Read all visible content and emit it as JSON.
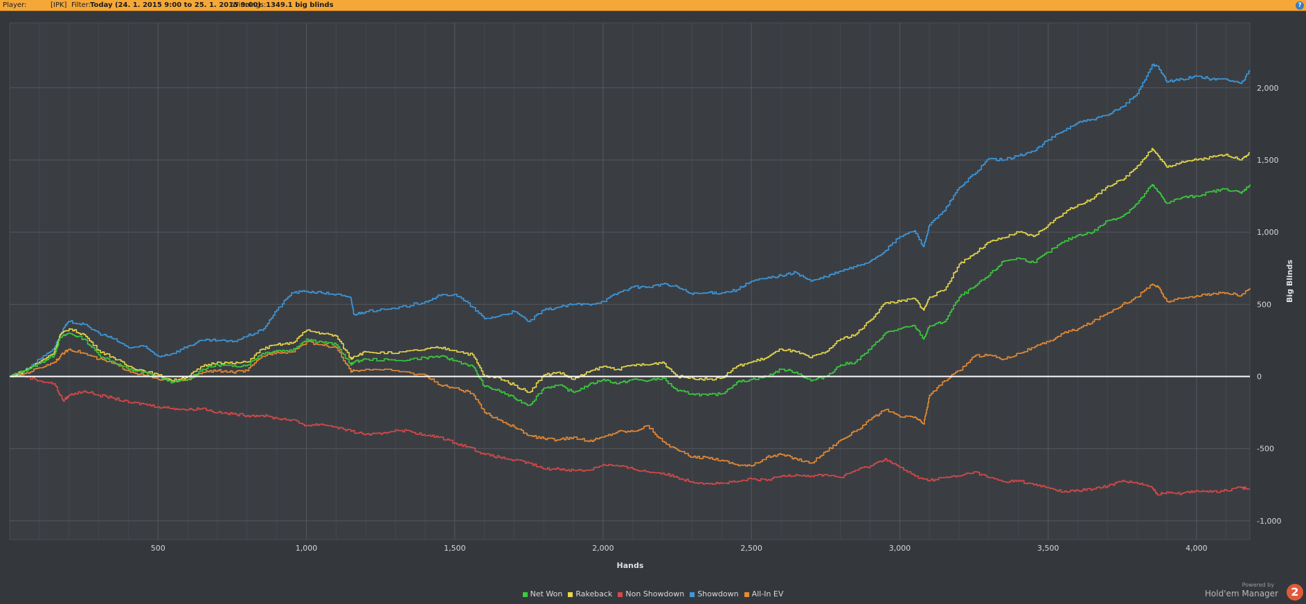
{
  "topbar": {
    "player_label": "Player:",
    "player_value": "[IPK]",
    "filter_label": "Filter:",
    "filter_value": "Today (24. 1. 2015 9:00 to 25. 1. 2015 9:00)",
    "winnings_label": "Winnings:",
    "winnings_value": "1349.1 big blinds",
    "help_icon": "help-icon"
  },
  "footer": {
    "powered_by": "Powered by",
    "brand": "Hold'em Manager",
    "brand_logo": "2"
  },
  "chart_data": {
    "type": "line",
    "xlabel": "Hands",
    "ylabel": "Big Blinds",
    "xlim": [
      0,
      4180
    ],
    "ylim": [
      -1130,
      2450
    ],
    "xticks": [
      500,
      1000,
      1500,
      2000,
      2500,
      3000,
      3500,
      4000
    ],
    "xtick_labels": [
      "500",
      "1,000",
      "1,500",
      "2,000",
      "2,500",
      "3,000",
      "3,500",
      "4,000"
    ],
    "yticks": [
      2000,
      1500,
      1000,
      500,
      0,
      -500,
      -1000
    ],
    "ytick_labels": [
      "2,000",
      "1,500",
      "1,000",
      "500",
      "0",
      "-500",
      "-1,000"
    ],
    "grid": true,
    "zero_line": true,
    "legend_position": "bottom-center",
    "series": [
      {
        "name": "Net Won",
        "color": "#3ccb3c",
        "x": [
          0,
          50,
          100,
          150,
          170,
          200,
          250,
          300,
          350,
          400,
          450,
          500,
          550,
          600,
          650,
          700,
          750,
          800,
          850,
          900,
          950,
          1000,
          1050,
          1100,
          1150,
          1160,
          1200,
          1300,
          1400,
          1450,
          1500,
          1560,
          1600,
          1650,
          1700,
          1750,
          1800,
          1850,
          1900,
          1950,
          2000,
          2050,
          2100,
          2150,
          2200,
          2250,
          2300,
          2350,
          2400,
          2450,
          2500,
          2550,
          2600,
          2650,
          2700,
          2750,
          2800,
          2850,
          2900,
          2950,
          3000,
          3050,
          3080,
          3100,
          3150,
          3200,
          3250,
          3300,
          3350,
          3400,
          3450,
          3500,
          3550,
          3600,
          3650,
          3700,
          3750,
          3800,
          3850,
          3870,
          3900,
          3950,
          4000,
          4050,
          4100,
          4150,
          4180
        ],
        "y": [
          0,
          40,
          90,
          150,
          270,
          300,
          260,
          150,
          100,
          50,
          30,
          0,
          -40,
          -20,
          50,
          80,
          70,
          80,
          160,
          180,
          180,
          260,
          240,
          220,
          80,
          100,
          120,
          110,
          130,
          140,
          110,
          70,
          -70,
          -100,
          -150,
          -200,
          -80,
          -60,
          -110,
          -60,
          -20,
          -50,
          -20,
          -30,
          -10,
          -100,
          -120,
          -130,
          -120,
          -40,
          -20,
          0,
          50,
          30,
          -30,
          0,
          80,
          100,
          190,
          300,
          330,
          350,
          260,
          350,
          380,
          550,
          620,
          700,
          800,
          820,
          790,
          860,
          930,
          980,
          1000,
          1080,
          1110,
          1200,
          1330,
          1280,
          1200,
          1240,
          1250,
          1280,
          1300,
          1270,
          1330
        ]
      },
      {
        "name": "Rakeback",
        "color": "#e8d84a",
        "x": [
          0,
          50,
          100,
          150,
          170,
          200,
          250,
          300,
          350,
          400,
          450,
          500,
          550,
          600,
          650,
          700,
          750,
          800,
          850,
          900,
          950,
          1000,
          1050,
          1100,
          1150,
          1160,
          1200,
          1300,
          1400,
          1450,
          1500,
          1560,
          1600,
          1650,
          1700,
          1750,
          1800,
          1850,
          1900,
          1950,
          2000,
          2050,
          2100,
          2150,
          2200,
          2250,
          2300,
          2350,
          2400,
          2450,
          2500,
          2550,
          2600,
          2650,
          2700,
          2750,
          2800,
          2850,
          2900,
          2950,
          3000,
          3050,
          3080,
          3100,
          3150,
          3200,
          3250,
          3300,
          3350,
          3400,
          3450,
          3500,
          3550,
          3600,
          3650,
          3700,
          3750,
          3800,
          3850,
          3870,
          3900,
          3950,
          4000,
          4050,
          4100,
          4150,
          4180
        ],
        "y": [
          0,
          40,
          100,
          170,
          290,
          330,
          290,
          180,
          130,
          70,
          40,
          10,
          -30,
          0,
          70,
          100,
          90,
          100,
          190,
          220,
          230,
          320,
          300,
          280,
          120,
          140,
          170,
          160,
          190,
          200,
          180,
          150,
          0,
          -10,
          -60,
          -110,
          10,
          30,
          -20,
          30,
          70,
          50,
          80,
          80,
          100,
          0,
          -10,
          -20,
          -10,
          70,
          100,
          130,
          190,
          170,
          130,
          170,
          260,
          290,
          390,
          510,
          520,
          540,
          460,
          550,
          600,
          780,
          850,
          930,
          960,
          1000,
          970,
          1050,
          1130,
          1190,
          1230,
          1320,
          1360,
          1460,
          1580,
          1530,
          1450,
          1490,
          1500,
          1520,
          1540,
          1500,
          1550
        ]
      },
      {
        "name": "Non Showdown",
        "color": "#d94848",
        "x": [
          0,
          40,
          100,
          150,
          180,
          200,
          250,
          300,
          350,
          400,
          450,
          500,
          550,
          600,
          650,
          700,
          750,
          800,
          850,
          900,
          950,
          1000,
          1050,
          1100,
          1150,
          1200,
          1250,
          1300,
          1350,
          1400,
          1450,
          1500,
          1550,
          1600,
          1650,
          1700,
          1750,
          1800,
          1850,
          1900,
          1950,
          2000,
          2050,
          2100,
          2150,
          2200,
          2250,
          2300,
          2350,
          2400,
          2450,
          2500,
          2550,
          2600,
          2650,
          2700,
          2750,
          2800,
          2850,
          2900,
          2950,
          3000,
          3050,
          3100,
          3150,
          3200,
          3250,
          3300,
          3350,
          3400,
          3450,
          3500,
          3550,
          3600,
          3650,
          3700,
          3750,
          3800,
          3850,
          3870,
          3900,
          3950,
          4000,
          4050,
          4100,
          4150,
          4180
        ],
        "y": [
          0,
          10,
          -30,
          -50,
          -170,
          -130,
          -100,
          -130,
          -150,
          -180,
          -190,
          -210,
          -220,
          -230,
          -220,
          -250,
          -260,
          -270,
          -270,
          -290,
          -300,
          -340,
          -330,
          -350,
          -380,
          -400,
          -400,
          -370,
          -380,
          -410,
          -420,
          -460,
          -490,
          -540,
          -560,
          -580,
          -600,
          -640,
          -640,
          -650,
          -650,
          -610,
          -620,
          -640,
          -660,
          -670,
          -700,
          -730,
          -740,
          -740,
          -730,
          -710,
          -720,
          -690,
          -680,
          -690,
          -680,
          -700,
          -650,
          -620,
          -570,
          -630,
          -690,
          -720,
          -700,
          -690,
          -660,
          -700,
          -730,
          -720,
          -750,
          -770,
          -800,
          -790,
          -780,
          -760,
          -720,
          -740,
          -770,
          -820,
          -800,
          -810,
          -790,
          -800,
          -790,
          -770,
          -780
        ]
      },
      {
        "name": "Showdown",
        "color": "#3d98dc",
        "x": [
          0,
          50,
          100,
          150,
          180,
          200,
          250,
          300,
          350,
          400,
          450,
          500,
          550,
          600,
          650,
          700,
          750,
          800,
          850,
          900,
          950,
          1000,
          1050,
          1100,
          1150,
          1160,
          1200,
          1300,
          1400,
          1450,
          1500,
          1560,
          1600,
          1650,
          1700,
          1750,
          1800,
          1850,
          1900,
          1950,
          2000,
          2050,
          2100,
          2150,
          2200,
          2250,
          2300,
          2350,
          2400,
          2450,
          2500,
          2550,
          2600,
          2650,
          2700,
          2750,
          2800,
          2850,
          2900,
          2950,
          3000,
          3050,
          3080,
          3100,
          3150,
          3200,
          3250,
          3300,
          3350,
          3400,
          3450,
          3500,
          3550,
          3600,
          3650,
          3700,
          3750,
          3800,
          3850,
          3870,
          3900,
          3950,
          4000,
          4050,
          4100,
          4150,
          4180
        ],
        "y": [
          0,
          40,
          120,
          200,
          330,
          380,
          360,
          300,
          260,
          200,
          210,
          140,
          160,
          210,
          250,
          250,
          240,
          280,
          320,
          460,
          580,
          590,
          580,
          570,
          540,
          430,
          450,
          470,
          520,
          560,
          570,
          480,
          400,
          420,
          450,
          380,
          460,
          480,
          500,
          500,
          520,
          580,
          620,
          620,
          640,
          620,
          570,
          580,
          580,
          600,
          660,
          680,
          700,
          720,
          660,
          690,
          730,
          760,
          800,
          870,
          970,
          1010,
          900,
          1050,
          1150,
          1310,
          1400,
          1510,
          1500,
          1530,
          1560,
          1640,
          1700,
          1760,
          1780,
          1810,
          1870,
          1960,
          2160,
          2150,
          2040,
          2060,
          2080,
          2060,
          2060,
          2030,
          2120
        ]
      },
      {
        "name": "All-In EV",
        "color": "#e78a32",
        "x": [
          0,
          50,
          100,
          150,
          180,
          200,
          250,
          300,
          350,
          400,
          450,
          500,
          550,
          600,
          650,
          700,
          750,
          800,
          850,
          900,
          950,
          1000,
          1050,
          1100,
          1150,
          1160,
          1200,
          1300,
          1400,
          1450,
          1500,
          1560,
          1600,
          1650,
          1700,
          1750,
          1800,
          1850,
          1900,
          1950,
          2000,
          2050,
          2100,
          2150,
          2200,
          2250,
          2300,
          2350,
          2400,
          2450,
          2500,
          2550,
          2600,
          2650,
          2700,
          2750,
          2800,
          2850,
          2900,
          2950,
          3000,
          3050,
          3080,
          3100,
          3150,
          3200,
          3250,
          3300,
          3350,
          3400,
          3450,
          3500,
          3550,
          3600,
          3650,
          3700,
          3750,
          3800,
          3850,
          3870,
          3900,
          3950,
          4000,
          4050,
          4100,
          4150,
          4180
        ],
        "y": [
          0,
          20,
          60,
          100,
          160,
          190,
          160,
          120,
          90,
          40,
          10,
          -20,
          -30,
          -20,
          30,
          40,
          30,
          40,
          140,
          170,
          170,
          240,
          220,
          200,
          30,
          40,
          50,
          40,
          10,
          -60,
          -80,
          -120,
          -250,
          -300,
          -350,
          -410,
          -430,
          -440,
          -420,
          -450,
          -420,
          -380,
          -380,
          -340,
          -450,
          -510,
          -560,
          -560,
          -580,
          -610,
          -620,
          -560,
          -540,
          -570,
          -600,
          -520,
          -440,
          -380,
          -300,
          -230,
          -280,
          -280,
          -330,
          -130,
          -30,
          40,
          140,
          150,
          120,
          160,
          200,
          240,
          300,
          330,
          380,
          440,
          500,
          550,
          640,
          620,
          520,
          540,
          560,
          570,
          580,
          560,
          610
        ]
      }
    ]
  }
}
